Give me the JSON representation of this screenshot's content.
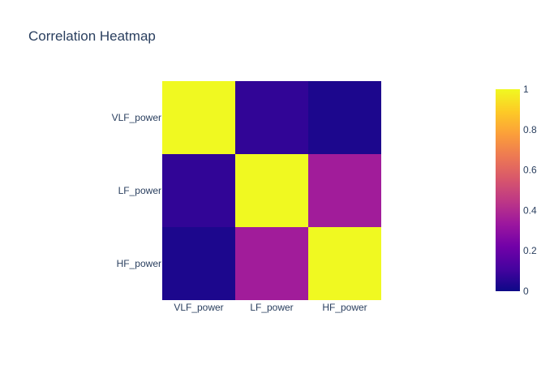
{
  "chart_data": {
    "type": "heatmap",
    "title": "Correlation Heatmap",
    "x": [
      "VLF_power",
      "LF_power",
      "HF_power"
    ],
    "y": [
      "VLF_power",
      "LF_power",
      "HF_power"
    ],
    "z": [
      [
        1.0,
        0.07,
        0.03
      ],
      [
        0.07,
        1.0,
        0.35
      ],
      [
        0.03,
        0.35,
        1.0
      ]
    ],
    "colorscale": "Plasma",
    "colorbar": {
      "range": [
        0,
        1
      ],
      "ticks": [
        "0",
        "0.2",
        "0.4",
        "0.6",
        "0.8",
        "1"
      ]
    }
  },
  "colors": {
    "plasma": [
      "#0d0887",
      "#46039f",
      "#7201a8",
      "#9c179e",
      "#bd3786",
      "#d8576b",
      "#ed7953",
      "#fb9f3a",
      "#fdca26",
      "#f0f921"
    ],
    "text": "#2a3f5f"
  }
}
